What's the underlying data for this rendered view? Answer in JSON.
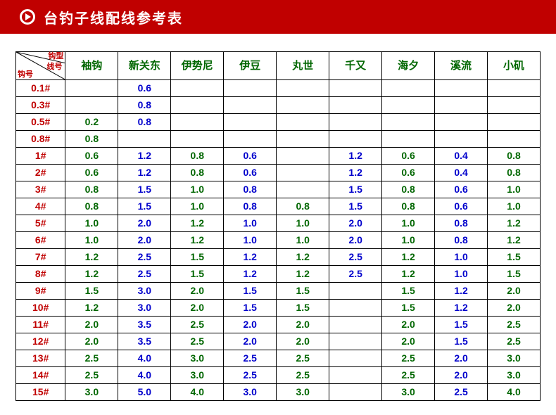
{
  "header": {
    "title": "台钓子线配线参考表"
  },
  "corner": {
    "top": "钩型",
    "mid": "线号",
    "bot": "钩号"
  },
  "columns": [
    "袖钩",
    "新关东",
    "伊势尼",
    "伊豆",
    "丸世",
    "千又",
    "海夕",
    "溪流",
    "小矶"
  ],
  "rows": [
    {
      "h": "0.1#",
      "c": [
        "",
        "0.6",
        "",
        "",
        "",
        "",
        "",
        "",
        ""
      ],
      "s": [
        "",
        "b",
        "",
        "",
        "",
        "",
        "",
        "",
        ""
      ]
    },
    {
      "h": "0.3#",
      "c": [
        "",
        "0.8",
        "",
        "",
        "",
        "",
        "",
        "",
        ""
      ],
      "s": [
        "",
        "b",
        "",
        "",
        "",
        "",
        "",
        "",
        ""
      ]
    },
    {
      "h": "0.5#",
      "c": [
        "0.2",
        "0.8",
        "",
        "",
        "",
        "",
        "",
        "",
        ""
      ],
      "s": [
        "g",
        "b",
        "",
        "",
        "",
        "",
        "",
        "",
        ""
      ]
    },
    {
      "h": "0.8#",
      "c": [
        "0.8",
        "",
        "",
        "",
        "",
        "",
        "",
        "",
        ""
      ],
      "s": [
        "g",
        "",
        "",
        "",
        "",
        "",
        "",
        "",
        ""
      ]
    },
    {
      "h": "1#",
      "c": [
        "0.6",
        "1.2",
        "0.8",
        "0.6",
        "",
        "1.2",
        "0.6",
        "0.4",
        "0.8"
      ],
      "s": [
        "g",
        "b",
        "g",
        "b",
        "",
        "b",
        "g",
        "b",
        "g"
      ]
    },
    {
      "h": "2#",
      "c": [
        "0.6",
        "1.2",
        "0.8",
        "0.6",
        "",
        "1.2",
        "0.6",
        "0.4",
        "0.8"
      ],
      "s": [
        "g",
        "b",
        "g",
        "b",
        "",
        "b",
        "g",
        "b",
        "g"
      ]
    },
    {
      "h": "3#",
      "c": [
        "0.8",
        "1.5",
        "1.0",
        "0.8",
        "",
        "1.5",
        "0.8",
        "0.6",
        "1.0"
      ],
      "s": [
        "g",
        "b",
        "g",
        "b",
        "",
        "b",
        "g",
        "b",
        "g"
      ]
    },
    {
      "h": "4#",
      "c": [
        "0.8",
        "1.5",
        "1.0",
        "0.8",
        "0.8",
        "1.5",
        "0.8",
        "0.6",
        "1.0"
      ],
      "s": [
        "g",
        "b",
        "g",
        "b",
        "g",
        "b",
        "g",
        "b",
        "g"
      ]
    },
    {
      "h": "5#",
      "c": [
        "1.0",
        "2.0",
        "1.2",
        "1.0",
        "1.0",
        "2.0",
        "1.0",
        "0.8",
        "1.2"
      ],
      "s": [
        "g",
        "b",
        "g",
        "b",
        "g",
        "b",
        "g",
        "b",
        "g"
      ]
    },
    {
      "h": "6#",
      "c": [
        "1.0",
        "2.0",
        "1.2",
        "1.0",
        "1.0",
        "2.0",
        "1.0",
        "0.8",
        "1.2"
      ],
      "s": [
        "g",
        "b",
        "g",
        "b",
        "g",
        "b",
        "g",
        "b",
        "g"
      ]
    },
    {
      "h": "7#",
      "c": [
        "1.2",
        "2.5",
        "1.5",
        "1.2",
        "1.2",
        "2.5",
        "1.2",
        "1.0",
        "1.5"
      ],
      "s": [
        "g",
        "b",
        "g",
        "b",
        "g",
        "b",
        "g",
        "b",
        "g"
      ]
    },
    {
      "h": "8#",
      "c": [
        "1.2",
        "2.5",
        "1.5",
        "1.2",
        "1.2",
        "2.5",
        "1.2",
        "1.0",
        "1.5"
      ],
      "s": [
        "g",
        "b",
        "g",
        "b",
        "g",
        "b",
        "g",
        "b",
        "g"
      ]
    },
    {
      "h": "9#",
      "c": [
        "1.5",
        "3.0",
        "2.0",
        "1.5",
        "1.5",
        "",
        "1.5",
        "1.2",
        "2.0"
      ],
      "s": [
        "g",
        "b",
        "g",
        "b",
        "g",
        "",
        "g",
        "b",
        "g"
      ]
    },
    {
      "h": "10#",
      "c": [
        "1.2",
        "3.0",
        "2.0",
        "1.5",
        "1.5",
        "",
        "1.5",
        "1.2",
        "2.0"
      ],
      "s": [
        "g",
        "b",
        "g",
        "b",
        "g",
        "",
        "g",
        "b",
        "g"
      ]
    },
    {
      "h": "11#",
      "c": [
        "2.0",
        "3.5",
        "2.5",
        "2.0",
        "2.0",
        "",
        "2.0",
        "1.5",
        "2.5"
      ],
      "s": [
        "g",
        "b",
        "g",
        "b",
        "g",
        "",
        "g",
        "b",
        "g"
      ]
    },
    {
      "h": "12#",
      "c": [
        "2.0",
        "3.5",
        "2.5",
        "2.0",
        "2.0",
        "",
        "2.0",
        "1.5",
        "2.5"
      ],
      "s": [
        "g",
        "b",
        "g",
        "b",
        "g",
        "",
        "g",
        "b",
        "g"
      ]
    },
    {
      "h": "13#",
      "c": [
        "2.5",
        "4.0",
        "3.0",
        "2.5",
        "2.5",
        "",
        "2.5",
        "2.0",
        "3.0"
      ],
      "s": [
        "g",
        "b",
        "g",
        "b",
        "g",
        "",
        "g",
        "b",
        "g"
      ]
    },
    {
      "h": "14#",
      "c": [
        "2.5",
        "4.0",
        "3.0",
        "2.5",
        "2.5",
        "",
        "2.5",
        "2.0",
        "3.0"
      ],
      "s": [
        "g",
        "b",
        "g",
        "b",
        "g",
        "",
        "g",
        "b",
        "g"
      ]
    },
    {
      "h": "15#",
      "c": [
        "3.0",
        "5.0",
        "4.0",
        "3.0",
        "3.0",
        "",
        "3.0",
        "2.5",
        "4.0"
      ],
      "s": [
        "g",
        "b",
        "g",
        "b",
        "g",
        "",
        "g",
        "b",
        "g"
      ]
    }
  ]
}
